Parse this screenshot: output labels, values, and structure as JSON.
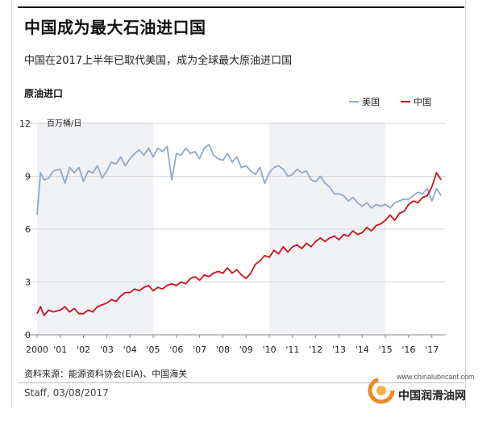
{
  "title": "中国成为最大石油进口国",
  "subtitle": "中国在2017上半年已取代美国，成为全球最大原油进口国",
  "chart_label": "原油进口",
  "unit_label": "百万桶/日",
  "source": "资料来源：能源资料协会(EIA)、中国海关",
  "staff": "Staff, 03/08/2017",
  "watermark": {
    "url": "www.chinalubricant.com",
    "name": "中国润滑油网"
  },
  "colors": {
    "us": "#8fa9c9",
    "china": "#c8141e",
    "shade": "#f0f2f5",
    "grid": "#d6d6d6"
  },
  "chart_data": {
    "type": "line",
    "ylim": [
      0,
      12
    ],
    "yticks": [
      0,
      3,
      6,
      9,
      12
    ],
    "xlim": [
      2000,
      2017.6
    ],
    "xticks": [
      {
        "x": 2000,
        "label": "2000"
      },
      {
        "x": 2001,
        "label": "'01"
      },
      {
        "x": 2002,
        "label": "'02"
      },
      {
        "x": 2003,
        "label": "'03"
      },
      {
        "x": 2004,
        "label": "'04"
      },
      {
        "x": 2005,
        "label": "'05"
      },
      {
        "x": 2006,
        "label": "'06"
      },
      {
        "x": 2007,
        "label": "'07"
      },
      {
        "x": 2008,
        "label": "'08"
      },
      {
        "x": 2009,
        "label": "'09"
      },
      {
        "x": 2010,
        "label": "'10"
      },
      {
        "x": 2011,
        "label": "'11"
      },
      {
        "x": 2012,
        "label": "'12"
      },
      {
        "x": 2013,
        "label": "'13"
      },
      {
        "x": 2014,
        "label": "'14"
      },
      {
        "x": 2015,
        "label": "'15"
      },
      {
        "x": 2016,
        "label": "'16"
      },
      {
        "x": 2017,
        "label": "'17"
      }
    ],
    "shaded_ranges": [
      [
        2000,
        2005
      ],
      [
        2010,
        2015
      ]
    ],
    "grid": true,
    "legend_position": "top-right",
    "series": [
      {
        "name": "美国",
        "points": [
          [
            2000.0,
            6.8
          ],
          [
            2000.15,
            9.2
          ],
          [
            2000.3,
            8.8
          ],
          [
            2000.5,
            8.9
          ],
          [
            2000.7,
            9.3
          ],
          [
            2001.0,
            9.4
          ],
          [
            2001.2,
            8.6
          ],
          [
            2001.4,
            9.5
          ],
          [
            2001.6,
            9.2
          ],
          [
            2001.8,
            9.5
          ],
          [
            2002.0,
            8.7
          ],
          [
            2002.2,
            9.3
          ],
          [
            2002.4,
            9.2
          ],
          [
            2002.6,
            9.6
          ],
          [
            2002.8,
            8.9
          ],
          [
            2003.0,
            9.3
          ],
          [
            2003.2,
            9.8
          ],
          [
            2003.4,
            9.7
          ],
          [
            2003.6,
            10.1
          ],
          [
            2003.8,
            9.6
          ],
          [
            2004.0,
            10.0
          ],
          [
            2004.2,
            10.3
          ],
          [
            2004.4,
            10.5
          ],
          [
            2004.6,
            10.2
          ],
          [
            2004.8,
            10.6
          ],
          [
            2005.0,
            10.1
          ],
          [
            2005.2,
            10.6
          ],
          [
            2005.4,
            10.4
          ],
          [
            2005.6,
            10.7
          ],
          [
            2005.8,
            8.8
          ],
          [
            2006.0,
            10.3
          ],
          [
            2006.2,
            10.2
          ],
          [
            2006.4,
            10.6
          ],
          [
            2006.6,
            10.3
          ],
          [
            2006.8,
            10.4
          ],
          [
            2007.0,
            10.0
          ],
          [
            2007.2,
            10.6
          ],
          [
            2007.4,
            10.8
          ],
          [
            2007.6,
            10.2
          ],
          [
            2007.8,
            10.0
          ],
          [
            2008.0,
            9.9
          ],
          [
            2008.2,
            10.3
          ],
          [
            2008.4,
            9.8
          ],
          [
            2008.6,
            10.1
          ],
          [
            2008.8,
            9.5
          ],
          [
            2009.0,
            9.6
          ],
          [
            2009.2,
            9.3
          ],
          [
            2009.4,
            9.1
          ],
          [
            2009.6,
            9.5
          ],
          [
            2009.8,
            8.6
          ],
          [
            2010.0,
            9.2
          ],
          [
            2010.2,
            9.5
          ],
          [
            2010.4,
            9.6
          ],
          [
            2010.6,
            9.4
          ],
          [
            2010.8,
            9.0
          ],
          [
            2011.0,
            9.1
          ],
          [
            2011.2,
            9.4
          ],
          [
            2011.4,
            9.2
          ],
          [
            2011.6,
            9.3
          ],
          [
            2011.8,
            8.8
          ],
          [
            2012.0,
            8.7
          ],
          [
            2012.2,
            9.0
          ],
          [
            2012.4,
            8.6
          ],
          [
            2012.6,
            8.4
          ],
          [
            2012.8,
            8.0
          ],
          [
            2013.0,
            8.0
          ],
          [
            2013.2,
            7.9
          ],
          [
            2013.4,
            7.6
          ],
          [
            2013.6,
            7.8
          ],
          [
            2013.8,
            7.5
          ],
          [
            2014.0,
            7.3
          ],
          [
            2014.2,
            7.5
          ],
          [
            2014.4,
            7.2
          ],
          [
            2014.6,
            7.4
          ],
          [
            2014.8,
            7.3
          ],
          [
            2015.0,
            7.4
          ],
          [
            2015.2,
            7.2
          ],
          [
            2015.4,
            7.5
          ],
          [
            2015.6,
            7.6
          ],
          [
            2015.8,
            7.7
          ],
          [
            2016.0,
            7.7
          ],
          [
            2016.2,
            7.9
          ],
          [
            2016.4,
            8.1
          ],
          [
            2016.6,
            8.0
          ],
          [
            2016.8,
            8.3
          ],
          [
            2017.0,
            7.6
          ],
          [
            2017.2,
            8.3
          ],
          [
            2017.4,
            7.9
          ]
        ]
      },
      {
        "name": "中国",
        "points": [
          [
            2000.0,
            1.2
          ],
          [
            2000.15,
            1.6
          ],
          [
            2000.3,
            1.1
          ],
          [
            2000.5,
            1.4
          ],
          [
            2000.7,
            1.3
          ],
          [
            2001.0,
            1.4
          ],
          [
            2001.2,
            1.6
          ],
          [
            2001.4,
            1.3
          ],
          [
            2001.6,
            1.5
          ],
          [
            2001.8,
            1.2
          ],
          [
            2002.0,
            1.2
          ],
          [
            2002.2,
            1.4
          ],
          [
            2002.4,
            1.3
          ],
          [
            2002.6,
            1.6
          ],
          [
            2002.8,
            1.7
          ],
          [
            2003.0,
            1.8
          ],
          [
            2003.2,
            2.0
          ],
          [
            2003.4,
            1.9
          ],
          [
            2003.6,
            2.2
          ],
          [
            2003.8,
            2.4
          ],
          [
            2004.0,
            2.4
          ],
          [
            2004.2,
            2.6
          ],
          [
            2004.4,
            2.5
          ],
          [
            2004.6,
            2.7
          ],
          [
            2004.8,
            2.8
          ],
          [
            2005.0,
            2.5
          ],
          [
            2005.2,
            2.7
          ],
          [
            2005.4,
            2.6
          ],
          [
            2005.6,
            2.8
          ],
          [
            2005.8,
            2.9
          ],
          [
            2006.0,
            2.8
          ],
          [
            2006.2,
            3.0
          ],
          [
            2006.4,
            2.9
          ],
          [
            2006.6,
            3.2
          ],
          [
            2006.8,
            3.3
          ],
          [
            2007.0,
            3.1
          ],
          [
            2007.2,
            3.4
          ],
          [
            2007.4,
            3.3
          ],
          [
            2007.6,
            3.5
          ],
          [
            2007.8,
            3.6
          ],
          [
            2008.0,
            3.5
          ],
          [
            2008.2,
            3.8
          ],
          [
            2008.4,
            3.5
          ],
          [
            2008.6,
            3.7
          ],
          [
            2008.8,
            3.4
          ],
          [
            2009.0,
            3.2
          ],
          [
            2009.2,
            3.5
          ],
          [
            2009.4,
            4.0
          ],
          [
            2009.6,
            4.2
          ],
          [
            2009.8,
            4.5
          ],
          [
            2010.0,
            4.4
          ],
          [
            2010.2,
            4.8
          ],
          [
            2010.4,
            4.6
          ],
          [
            2010.6,
            5.0
          ],
          [
            2010.8,
            4.7
          ],
          [
            2011.0,
            5.0
          ],
          [
            2011.2,
            5.1
          ],
          [
            2011.4,
            4.9
          ],
          [
            2011.6,
            5.2
          ],
          [
            2011.8,
            5.0
          ],
          [
            2012.0,
            5.3
          ],
          [
            2012.2,
            5.5
          ],
          [
            2012.4,
            5.3
          ],
          [
            2012.6,
            5.5
          ],
          [
            2012.8,
            5.6
          ],
          [
            2013.0,
            5.4
          ],
          [
            2013.2,
            5.7
          ],
          [
            2013.4,
            5.6
          ],
          [
            2013.6,
            5.9
          ],
          [
            2013.8,
            5.7
          ],
          [
            2014.0,
            5.8
          ],
          [
            2014.2,
            6.1
          ],
          [
            2014.4,
            5.9
          ],
          [
            2014.6,
            6.2
          ],
          [
            2014.8,
            6.3
          ],
          [
            2015.0,
            6.5
          ],
          [
            2015.2,
            6.8
          ],
          [
            2015.4,
            6.5
          ],
          [
            2015.6,
            6.9
          ],
          [
            2015.8,
            7.0
          ],
          [
            2016.0,
            7.4
          ],
          [
            2016.2,
            7.6
          ],
          [
            2016.4,
            7.5
          ],
          [
            2016.6,
            7.8
          ],
          [
            2016.8,
            7.9
          ],
          [
            2017.0,
            8.4
          ],
          [
            2017.2,
            9.2
          ],
          [
            2017.4,
            8.8
          ]
        ]
      }
    ]
  }
}
